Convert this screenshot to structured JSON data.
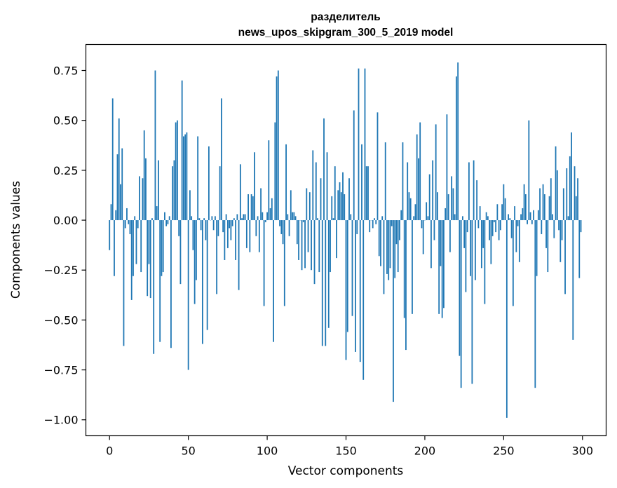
{
  "chart_data": {
    "type": "bar",
    "title_line1": "разделитель",
    "title_line2": "news_upos_skipgram_300_5_2019 model",
    "xlabel": "Vector components",
    "ylabel": "Components values",
    "xlim": [
      -15,
      315
    ],
    "ylim": [
      -1.08,
      0.88
    ],
    "xticks": [
      0,
      50,
      100,
      150,
      200,
      250,
      300
    ],
    "yticks": [
      -1.0,
      -0.75,
      -0.5,
      -0.25,
      0.0,
      0.25,
      0.5,
      0.75
    ],
    "ytick_labels": [
      "−1.00",
      "−0.75",
      "−0.50",
      "−0.25",
      "0.00",
      "0.25",
      "0.50",
      "0.75"
    ],
    "bar_color": "#1f77b4",
    "grid": false,
    "values": [
      -0.15,
      0.08,
      0.61,
      -0.28,
      0.05,
      0.33,
      0.51,
      0.18,
      0.36,
      -0.63,
      -0.04,
      0.06,
      -0.02,
      -0.07,
      -0.4,
      -0.28,
      0.02,
      -0.22,
      -0.04,
      0.22,
      -0.26,
      0.21,
      0.45,
      0.31,
      -0.38,
      -0.22,
      -0.39,
      0.01,
      -0.67,
      0.75,
      0.07,
      0.3,
      -0.61,
      -0.28,
      -0.26,
      0.04,
      -0.03,
      -0.02,
      0.02,
      -0.64,
      0.27,
      0.3,
      0.49,
      0.5,
      -0.08,
      -0.32,
      0.7,
      0.42,
      0.43,
      0.44,
      -0.75,
      0.15,
      0.02,
      -0.15,
      -0.42,
      -0.3,
      0.42,
      0.01,
      -0.05,
      -0.62,
      0.01,
      -0.1,
      -0.55,
      0.37,
      0.0,
      0.02,
      -0.05,
      0.02,
      -0.37,
      -0.08,
      0.27,
      0.61,
      -0.06,
      -0.2,
      0.03,
      -0.14,
      -0.04,
      -0.1,
      -0.03,
      0.01,
      -0.2,
      0.03,
      -0.35,
      0.28,
      0.01,
      0.03,
      0.03,
      -0.14,
      0.13,
      -0.16,
      0.13,
      0.12,
      0.34,
      -0.08,
      0.02,
      -0.16,
      0.16,
      0.04,
      -0.43,
      -0.01,
      0.04,
      0.4,
      0.06,
      0.11,
      -0.61,
      0.49,
      0.72,
      0.75,
      -0.03,
      -0.07,
      -0.12,
      -0.43,
      0.38,
      0.03,
      -0.08,
      0.15,
      0.04,
      0.04,
      0.02,
      -0.12,
      -0.2,
      0.0,
      -0.25,
      -0.01,
      -0.24,
      0.16,
      -0.16,
      0.14,
      -0.25,
      0.35,
      -0.32,
      0.29,
      0.01,
      -0.26,
      0.21,
      -0.63,
      0.51,
      -0.63,
      0.34,
      -0.54,
      -0.26,
      0.12,
      0.01,
      0.27,
      -0.19,
      0.15,
      0.19,
      0.14,
      0.24,
      0.13,
      -0.7,
      -0.56,
      0.21,
      0.03,
      -0.48,
      0.55,
      -0.66,
      -0.07,
      0.76,
      -0.71,
      0.38,
      -0.8,
      0.76,
      0.27,
      0.27,
      -0.06,
      0.0,
      -0.04,
      0.01,
      -0.02,
      0.54,
      -0.18,
      -0.23,
      0.02,
      -0.37,
      0.39,
      -0.27,
      -0.3,
      -0.24,
      -0.03,
      -0.91,
      -0.29,
      -0.12,
      -0.26,
      -0.1,
      0.05,
      0.39,
      -0.49,
      -0.65,
      0.29,
      0.14,
      0.11,
      -0.47,
      0.02,
      0.08,
      0.43,
      0.31,
      0.49,
      -0.04,
      -0.17,
      0.0,
      0.09,
      0.02,
      0.23,
      -0.24,
      0.3,
      -0.1,
      0.48,
      0.14,
      -0.47,
      -0.23,
      -0.49,
      -0.44,
      0.06,
      0.53,
      0.13,
      -0.16,
      0.22,
      0.16,
      0.03,
      0.72,
      0.79,
      -0.68,
      -0.84,
      0.02,
      -0.14,
      -0.36,
      -0.06,
      0.29,
      -0.28,
      -0.82,
      0.3,
      -0.3,
      0.2,
      -0.04,
      0.07,
      -0.24,
      -0.14,
      -0.42,
      0.04,
      0.02,
      -0.1,
      -0.22,
      -0.08,
      -0.01,
      -0.06,
      0.08,
      -0.1,
      -0.05,
      0.08,
      0.18,
      0.11,
      -0.99,
      0.03,
      0.01,
      -0.09,
      -0.43,
      0.07,
      -0.16,
      -0.03,
      -0.21,
      0.03,
      0.06,
      0.18,
      0.13,
      -0.02,
      0.5,
      0.04,
      -0.02,
      0.05,
      -0.84,
      -0.28,
      0.05,
      0.16,
      -0.07,
      0.18,
      0.13,
      -0.14,
      -0.26,
      0.12,
      0.21,
      0.03,
      -0.09,
      0.37,
      0.25,
      -0.05,
      -0.21,
      -0.1,
      0.16,
      -0.37,
      0.26,
      0.02,
      0.32,
      0.44,
      -0.6,
      0.27,
      0.12,
      0.21,
      -0.29,
      -0.06
    ]
  }
}
